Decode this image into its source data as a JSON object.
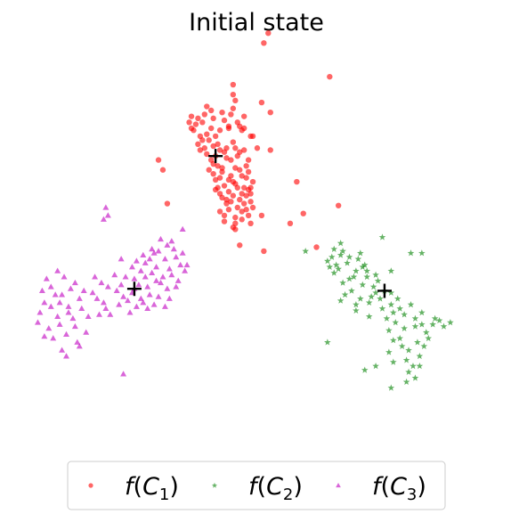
{
  "chart_data": {
    "type": "scatter",
    "title": "Initial state",
    "axes_visible": false,
    "grid": false,
    "legend_position": "bottom",
    "xlim": [
      -10,
      10
    ],
    "ylim": [
      -10,
      10
    ],
    "series": [
      {
        "name": "f(C1)",
        "name_main": "f(C",
        "name_sub": "1",
        "name_tail": ")",
        "color": "#ff0000",
        "marker": "circle",
        "centroid": [
          -1.8,
          4.6
        ],
        "points": [
          [
            -1.8,
            4.6
          ],
          [
            -2.6,
            6.5
          ],
          [
            -1.2,
            6.1
          ],
          [
            -2.1,
            5.4
          ],
          [
            -1.5,
            4.0
          ],
          [
            -0.9,
            3.2
          ],
          [
            -1.3,
            2.4
          ],
          [
            -0.4,
            1.9
          ],
          [
            -1.6,
            5.9
          ],
          [
            -2.9,
            6.6
          ],
          [
            -0.8,
            6.3
          ],
          [
            -2.3,
            5.0
          ],
          [
            -1.1,
            4.4
          ],
          [
            -0.6,
            3.6
          ],
          [
            -1.7,
            3.0
          ],
          [
            -0.2,
            2.3
          ],
          [
            -1.4,
            1.6
          ],
          [
            -0.9,
            1.2
          ],
          [
            -2.0,
            6.0
          ],
          [
            -2.5,
            5.6
          ],
          [
            -1.0,
            5.3
          ],
          [
            -1.9,
            4.2
          ],
          [
            -0.7,
            4.8
          ],
          [
            -1.2,
            3.4
          ],
          [
            -0.3,
            2.9
          ],
          [
            -0.8,
            2.0
          ],
          [
            -1.5,
            6.8
          ],
          [
            -0.5,
            6.6
          ],
          [
            -2.2,
            4.7
          ],
          [
            -1.6,
            2.7
          ],
          [
            -0.1,
            3.3
          ],
          [
            -0.6,
            1.4
          ],
          [
            -2.8,
            5.9
          ],
          [
            -1.3,
            5.0
          ],
          [
            -0.4,
            4.1
          ],
          [
            -1.9,
            3.7
          ],
          [
            -1.0,
            2.6
          ],
          [
            -0.3,
            1.6
          ],
          [
            -2.4,
            6.3
          ],
          [
            -1.1,
            6.7
          ],
          [
            -1.7,
            5.2
          ],
          [
            -0.9,
            4.0
          ],
          [
            -1.4,
            3.1
          ],
          [
            -0.7,
            2.4
          ],
          [
            -1.2,
            1.9
          ],
          [
            -2.6,
            5.2
          ],
          [
            -0.2,
            5.6
          ],
          [
            -1.8,
            3.4
          ],
          [
            -0.5,
            3.0
          ],
          [
            -1.0,
            1.0
          ],
          [
            -2.7,
            6.2
          ],
          [
            -2.0,
            4.4
          ],
          [
            -1.5,
            3.8
          ],
          [
            -0.8,
            4.6
          ],
          [
            -0.4,
            2.6
          ],
          [
            -1.3,
            2.2
          ],
          [
            -0.6,
            5.9
          ],
          [
            -2.2,
            5.7
          ],
          [
            -1.1,
            3.6
          ],
          [
            -0.2,
            1.2
          ],
          [
            -0.9,
            0.9
          ],
          [
            -1.6,
            4.9
          ],
          [
            -2.9,
            6.0
          ],
          [
            -1.4,
            6.4
          ],
          [
            -0.7,
            3.9
          ],
          [
            -1.2,
            2.8
          ],
          [
            -0.5,
            2.2
          ],
          [
            -1.9,
            6.5
          ],
          [
            -0.3,
            4.4
          ],
          [
            -1.6,
            1.8
          ],
          [
            -2.5,
            4.9
          ],
          [
            -1.0,
            3.3
          ],
          [
            -0.6,
            1.8
          ],
          [
            -1.8,
            5.6
          ],
          [
            -1.3,
            4.5
          ],
          [
            -0.9,
            5.0
          ],
          [
            -2.3,
            6.7
          ],
          [
            -0.4,
            3.5
          ],
          [
            -1.5,
            2.5
          ],
          [
            -0.1,
            2.0
          ],
          [
            -1.0,
            7.0
          ],
          [
            -2.1,
            3.9
          ],
          [
            -1.4,
            1.3
          ],
          [
            -0.7,
            6.1
          ],
          [
            -1.9,
            5.1
          ],
          [
            -1.1,
            2.3
          ],
          [
            -0.5,
            4.9
          ],
          [
            -2.4,
            5.4
          ],
          [
            -1.7,
            4.1
          ],
          [
            -0.8,
            3.0
          ],
          [
            -3.0,
            6.3
          ],
          [
            -1.2,
            6.0
          ],
          [
            -0.3,
            3.8
          ],
          [
            -1.6,
            3.5
          ],
          [
            -0.9,
            1.5
          ],
          [
            -2.0,
            6.9
          ],
          [
            -1.4,
            4.8
          ],
          [
            -0.6,
            2.7
          ],
          [
            -1.8,
            2.9
          ],
          [
            -0.2,
            2.7
          ],
          [
            0.7,
            4.9
          ],
          [
            -4.2,
            3.9
          ],
          [
            -4.4,
            4.4
          ],
          [
            -4.0,
            2.2
          ],
          [
            0.1,
            5.0
          ],
          [
            0.3,
            1.6
          ],
          [
            1.9,
            3.3
          ],
          [
            -1.0,
            7.7
          ],
          [
            -1.0,
            8.2
          ],
          [
            0.4,
            -0.2
          ],
          [
            2.8,
            0.0
          ],
          [
            2.2,
            1.7
          ],
          [
            3.8,
            2.1
          ],
          [
            1.6,
            1.2
          ],
          [
            -0.5,
            6.0
          ],
          [
            -0.1,
            5.6
          ],
          [
            -0.2,
            3.0
          ],
          [
            -0.7,
            0.1
          ],
          [
            0.7,
            6.8
          ],
          [
            0.3,
            7.3
          ],
          [
            0.6,
            10.8
          ],
          [
            0.4,
            10.3
          ],
          [
            3.4,
            8.6
          ],
          [
            -0.9,
            7.4
          ],
          [
            -2.2,
            7.1
          ]
        ]
      },
      {
        "name": "f(C2)",
        "name_main": "f(C",
        "name_sub": "2",
        "name_tail": ")",
        "color": "#008000",
        "marker": "star",
        "centroid": [
          5.9,
          -2.2
        ],
        "points": [
          [
            5.9,
            -2.2
          ],
          [
            4.5,
            -1.5
          ],
          [
            3.8,
            -1.1
          ],
          [
            4.9,
            -1.9
          ],
          [
            5.3,
            -2.5
          ],
          [
            4.2,
            -0.8
          ],
          [
            3.5,
            -0.5
          ],
          [
            5.6,
            -1.7
          ],
          [
            4.7,
            -0.6
          ],
          [
            4.0,
            -1.8
          ],
          [
            5.1,
            -1.2
          ],
          [
            3.6,
            -1.3
          ],
          [
            4.4,
            -2.2
          ],
          [
            5.0,
            -0.9
          ],
          [
            4.8,
            -2.6
          ],
          [
            3.3,
            -0.7
          ],
          [
            6.2,
            -2.9
          ],
          [
            6.8,
            -3.4
          ],
          [
            7.3,
            -4.0
          ],
          [
            6.6,
            -4.6
          ],
          [
            7.0,
            -5.2
          ],
          [
            7.6,
            -3.3
          ],
          [
            6.4,
            -3.8
          ],
          [
            7.4,
            -4.8
          ],
          [
            6.9,
            -5.7
          ],
          [
            7.8,
            -4.3
          ],
          [
            6.3,
            -3.3
          ],
          [
            7.1,
            -2.9
          ],
          [
            8.1,
            -3.9
          ],
          [
            6.7,
            -5.0
          ],
          [
            7.5,
            -5.5
          ],
          [
            6.1,
            -4.2
          ],
          [
            8.2,
            -3.6
          ],
          [
            7.2,
            -6.0
          ],
          [
            6.5,
            -2.6
          ],
          [
            5.8,
            -3.1
          ],
          [
            4.6,
            -1.2
          ],
          [
            3.9,
            -0.4
          ],
          [
            5.4,
            -2.0
          ],
          [
            4.3,
            -1.6
          ],
          [
            3.7,
            -0.9
          ],
          [
            5.2,
            -2.8
          ],
          [
            4.1,
            -2.4
          ],
          [
            5.5,
            -1.4
          ],
          [
            6.0,
            -3.6
          ],
          [
            7.7,
            -5.0
          ],
          [
            6.8,
            -4.1
          ],
          [
            7.3,
            -3.6
          ],
          [
            8.4,
            -3.7
          ],
          [
            7.0,
            -6.3
          ],
          [
            5.7,
            -2.6
          ],
          [
            4.9,
            -1.0
          ],
          [
            6.3,
            -4.7
          ],
          [
            7.9,
            -4.6
          ],
          [
            6.2,
            -2.3
          ],
          [
            3.4,
            -1.0
          ],
          [
            4.6,
            -2.9
          ],
          [
            5.1,
            -1.5
          ],
          [
            7.5,
            -6.0
          ],
          [
            6.6,
            -3.1
          ],
          [
            4.0,
            -0.2
          ],
          [
            4.8,
            -0.3
          ],
          [
            3.6,
            -0.1
          ],
          [
            8.6,
            -4.0
          ],
          [
            6.9,
            -6.8
          ],
          [
            7.3,
            -6.6
          ],
          [
            5.5,
            -2.3
          ],
          [
            4.3,
            -0.5
          ],
          [
            6.1,
            -5.3
          ],
          [
            7.6,
            -3.9
          ],
          [
            2.3,
            -0.2
          ],
          [
            3.9,
            0.2
          ],
          [
            5.8,
            0.5
          ],
          [
            7.1,
            -0.3
          ],
          [
            7.6,
            -0.3
          ],
          [
            6.2,
            -1.2
          ],
          [
            3.3,
            -4.8
          ],
          [
            5.0,
            -6.2
          ],
          [
            6.2,
            -7.1
          ],
          [
            5.5,
            -6.0
          ],
          [
            3.9,
            -2.7
          ],
          [
            5.2,
            -3.5
          ],
          [
            4.6,
            -3.2
          ],
          [
            6.3,
            -5.8
          ],
          [
            8.9,
            -3.8
          ]
        ]
      },
      {
        "name": "f(C3)",
        "name_main": "f(C",
        "name_sub": "3",
        "name_tail": ")",
        "color": "#bf00bf",
        "marker": "triangle",
        "centroid": [
          -5.5,
          -2.1
        ],
        "points": [
          [
            -5.5,
            -2.1
          ],
          [
            -5.0,
            -1.5
          ],
          [
            -4.5,
            -1.0
          ],
          [
            -4.1,
            -0.6
          ],
          [
            -4.8,
            -2.4
          ],
          [
            -5.2,
            -1.2
          ],
          [
            -4.6,
            -0.3
          ],
          [
            -3.9,
            -1.1
          ],
          [
            -5.8,
            -2.7
          ],
          [
            -4.3,
            -1.8
          ],
          [
            -5.0,
            -0.8
          ],
          [
            -3.6,
            -0.5
          ],
          [
            -4.9,
            -2.0
          ],
          [
            -5.5,
            -1.6
          ],
          [
            -3.8,
            -1.4
          ],
          [
            -4.4,
            -0.2
          ],
          [
            -5.2,
            -2.6
          ],
          [
            -4.0,
            -2.1
          ],
          [
            -3.4,
            -0.9
          ],
          [
            -4.7,
            -1.3
          ],
          [
            -5.6,
            -1.0
          ],
          [
            -4.2,
            -1.5
          ],
          [
            -3.7,
            -0.1
          ],
          [
            -5.1,
            -0.4
          ],
          [
            -6.0,
            -2.5
          ],
          [
            -4.6,
            -2.9
          ],
          [
            -3.5,
            -1.7
          ],
          [
            -5.4,
            -3.0
          ],
          [
            -4.0,
            0.1
          ],
          [
            -4.8,
            -0.6
          ],
          [
            -6.1,
            -1.9
          ],
          [
            -5.7,
            -3.3
          ],
          [
            -3.3,
            -0.3
          ],
          [
            -4.5,
            -1.7
          ],
          [
            -5.3,
            -1.9
          ],
          [
            -6.2,
            -2.9
          ],
          [
            -3.9,
            -2.6
          ],
          [
            -4.9,
            -3.1
          ],
          [
            -5.9,
            -1.5
          ],
          [
            -3.2,
            -1.2
          ],
          [
            -4.4,
            -2.5
          ],
          [
            -5.1,
            -2.8
          ],
          [
            -4.7,
            -0.1
          ],
          [
            -3.6,
            -2.0
          ],
          [
            -5.6,
            -2.3
          ],
          [
            -4.1,
            -3.0
          ],
          [
            -6.3,
            -2.2
          ],
          [
            -4.3,
            0.4
          ],
          [
            -5.4,
            -0.7
          ],
          [
            -3.8,
            0.3
          ],
          [
            -8.8,
            -2.4
          ],
          [
            -9.3,
            -2.0
          ],
          [
            -8.5,
            -3.0
          ],
          [
            -9.0,
            -3.5
          ],
          [
            -8.2,
            -1.8
          ],
          [
            -9.6,
            -2.8
          ],
          [
            -8.9,
            -3.9
          ],
          [
            -8.0,
            -2.6
          ],
          [
            -9.5,
            -1.6
          ],
          [
            -8.6,
            -4.4
          ],
          [
            -9.8,
            -3.3
          ],
          [
            -8.3,
            -3.6
          ],
          [
            -9.1,
            -2.4
          ],
          [
            -7.9,
            -3.1
          ],
          [
            -9.7,
            -2.2
          ],
          [
            -8.7,
            -1.5
          ],
          [
            -9.4,
            -4.1
          ],
          [
            -8.1,
            -4.8
          ],
          [
            -8.4,
            -2.1
          ],
          [
            -9.9,
            -3.8
          ],
          [
            -8.8,
            -5.2
          ],
          [
            -9.2,
            -4.6
          ],
          [
            -7.8,
            -2.2
          ],
          [
            -8.5,
            -3.3
          ],
          [
            -9.6,
            -4.5
          ],
          [
            -8.9,
            -2.8
          ],
          [
            -8.2,
            -4.0
          ],
          [
            -9.3,
            -3.0
          ],
          [
            -7.6,
            -3.5
          ],
          [
            -8.6,
            -5.5
          ],
          [
            -7.2,
            -2.6
          ],
          [
            -7.0,
            -1.8
          ],
          [
            -6.8,
            -3.1
          ],
          [
            -7.4,
            -2.3
          ],
          [
            -7.1,
            -3.4
          ],
          [
            -6.7,
            -2.0
          ],
          [
            -6.9,
            -2.8
          ],
          [
            -7.3,
            -1.5
          ],
          [
            -6.6,
            -3.4
          ],
          [
            -6.4,
            -1.4
          ],
          [
            -6.7,
            1.6
          ],
          [
            -6.8,
            2.0
          ],
          [
            -6.9,
            1.4
          ],
          [
            -3.3,
            0.9
          ],
          [
            -3.1,
            -0.9
          ],
          [
            -6.0,
            -6.4
          ],
          [
            -6.1,
            -0.6
          ],
          [
            -7.7,
            -4.3
          ],
          [
            -9.0,
            -1.2
          ],
          [
            -8.0,
            -5.0
          ]
        ]
      }
    ]
  }
}
